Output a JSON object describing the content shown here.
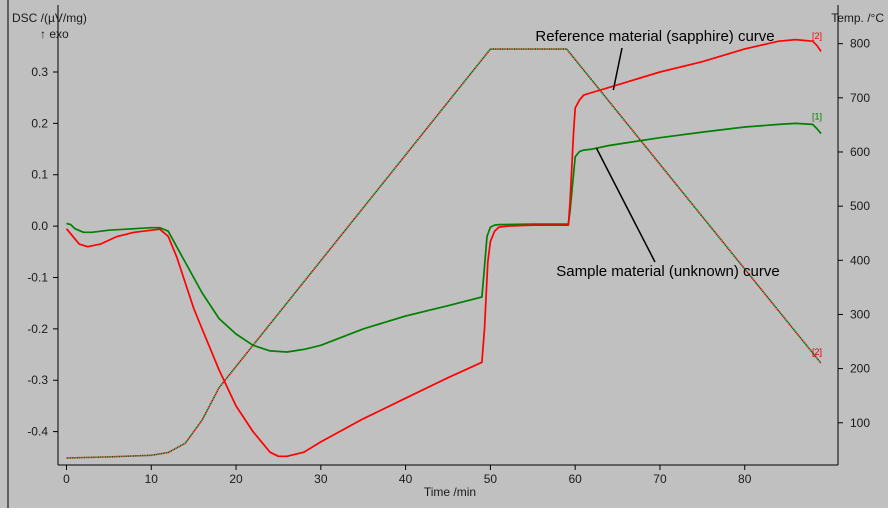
{
  "chart_data": {
    "type": "line",
    "y_axis_label": "DSC /(µV/mg)",
    "y_axis_sublabel": "↑ exo",
    "x_axis_label": "Time /min",
    "y2_axis_label": "Temp. /°C",
    "xlim": [
      -1,
      91
    ],
    "ylim": [
      -0.465,
      0.372
    ],
    "y2lim": [
      22,
      816
    ],
    "x_ticks": [
      0,
      10,
      20,
      30,
      40,
      50,
      60,
      70,
      80
    ],
    "y_ticks": [
      -0.4,
      -0.3,
      -0.2,
      -0.1,
      0.0,
      0.1,
      0.2,
      0.3
    ],
    "y_tick_labels": [
      "-0.4",
      "-0.3",
      "-0.2",
      "-0.1",
      "0.0",
      "0.1",
      "0.2",
      "0.3"
    ],
    "y2_ticks": [
      100,
      200,
      300,
      400,
      500,
      600,
      700,
      800
    ],
    "background_color": "#c0c0c0",
    "series": [
      {
        "curve_tag": "[2]",
        "axis": "left",
        "color": "#ff0000",
        "style": "solid",
        "x": [
          0,
          0.5,
          1.5,
          2.5,
          4,
          6,
          8,
          10,
          11,
          12,
          13,
          14,
          15,
          16,
          18,
          20,
          22,
          24,
          25,
          26,
          28,
          30,
          35,
          40,
          45,
          49,
          49.3,
          49.7,
          50,
          50.5,
          51,
          52,
          55,
          58,
          59.2,
          59.4,
          59.8,
          60,
          60.5,
          61,
          62,
          64,
          66,
          70,
          75,
          80,
          84,
          86,
          88,
          88.5,
          89
        ],
        "y": [
          -0.005,
          -0.015,
          -0.035,
          -0.04,
          -0.035,
          -0.02,
          -0.012,
          -0.008,
          -0.006,
          -0.02,
          -0.06,
          -0.11,
          -0.16,
          -0.2,
          -0.28,
          -0.35,
          -0.4,
          -0.44,
          -0.448,
          -0.448,
          -0.44,
          -0.42,
          -0.375,
          -0.335,
          -0.295,
          -0.265,
          -0.2,
          -0.07,
          -0.03,
          -0.01,
          -0.002,
          0.0,
          0.002,
          0.002,
          0.002,
          0.05,
          0.18,
          0.23,
          0.245,
          0.255,
          0.26,
          0.27,
          0.28,
          0.3,
          0.32,
          0.345,
          0.36,
          0.363,
          0.36,
          0.352,
          0.34
        ]
      },
      {
        "curve_tag": "[1]",
        "axis": "left",
        "color": "#008000",
        "style": "solid",
        "x": [
          0,
          0.5,
          1,
          2,
          3,
          5,
          8,
          10,
          11,
          12,
          13,
          14,
          16,
          18,
          20,
          22,
          24,
          26,
          28,
          30,
          35,
          40,
          45,
          49,
          49.2,
          49.6,
          50,
          50.5,
          51,
          55,
          59.2,
          59.4,
          59.8,
          60,
          60.5,
          61,
          62,
          64,
          66,
          70,
          75,
          80,
          84,
          86,
          88,
          88.5,
          89
        ],
        "y": [
          0.005,
          0.003,
          -0.005,
          -0.012,
          -0.012,
          -0.008,
          -0.005,
          -0.003,
          -0.003,
          -0.01,
          -0.04,
          -0.07,
          -0.13,
          -0.18,
          -0.21,
          -0.232,
          -0.243,
          -0.245,
          -0.24,
          -0.232,
          -0.2,
          -0.175,
          -0.155,
          -0.138,
          -0.1,
          -0.02,
          -0.002,
          0.002,
          0.003,
          0.004,
          0.004,
          0.03,
          0.1,
          0.135,
          0.145,
          0.148,
          0.15,
          0.157,
          0.162,
          0.172,
          0.183,
          0.193,
          0.198,
          0.2,
          0.198,
          0.19,
          0.18
        ]
      },
      {
        "curve_tag": "[2]",
        "axis": "right",
        "color": "#c00000",
        "style": "dotted",
        "x": [
          0,
          5,
          10,
          12,
          14,
          16,
          18,
          50,
          59,
          89
        ],
        "y": [
          35,
          37,
          40,
          45,
          62,
          105,
          165,
          790,
          790,
          210
        ]
      },
      {
        "axis": "right",
        "color": "#008000",
        "style": "dotted",
        "x": [
          0,
          5,
          10,
          12,
          14,
          16,
          18,
          50,
          59,
          89
        ],
        "y": [
          35,
          37,
          40,
          45,
          62,
          105,
          165,
          790,
          790,
          210
        ]
      }
    ],
    "annotations": [
      {
        "text": "Reference material (sapphire) curve",
        "arrow_to": {
          "x": 64.5,
          "y": 0.265
        }
      },
      {
        "text": "Sample material (unknown) curve",
        "arrow_to": {
          "x": 62.5,
          "y": 0.152
        }
      }
    ]
  }
}
